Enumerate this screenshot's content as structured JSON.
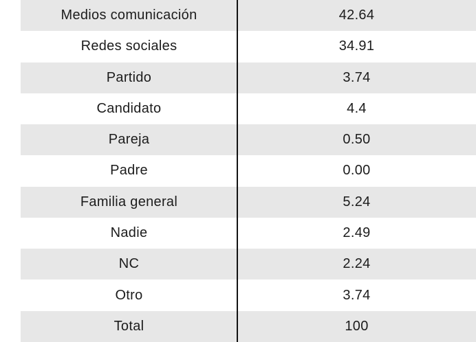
{
  "chart_data": {
    "type": "table",
    "title": "",
    "legend": "none",
    "grid": "alternating-row-shading",
    "rows": [
      {
        "label": "Medios comunicación",
        "value": "42.64"
      },
      {
        "label": "Redes sociales",
        "value": "34.91"
      },
      {
        "label": "Partido",
        "value": "3.74"
      },
      {
        "label": "Candidato",
        "value": "4.4"
      },
      {
        "label": "Pareja",
        "value": "0.50"
      },
      {
        "label": "Padre",
        "value": "0.00"
      },
      {
        "label": "Familia general",
        "value": "5.24"
      },
      {
        "label": "Nadie",
        "value": "2.49"
      },
      {
        "label": "NC",
        "value": "2.24"
      },
      {
        "label": "Otro",
        "value": "3.74"
      },
      {
        "label": "Total",
        "value": "100"
      }
    ],
    "colors": {
      "row_alt_bg": "#e7e7e7",
      "divider": "#111111",
      "text": "#1c1c1c",
      "background": "#ffffff"
    }
  }
}
